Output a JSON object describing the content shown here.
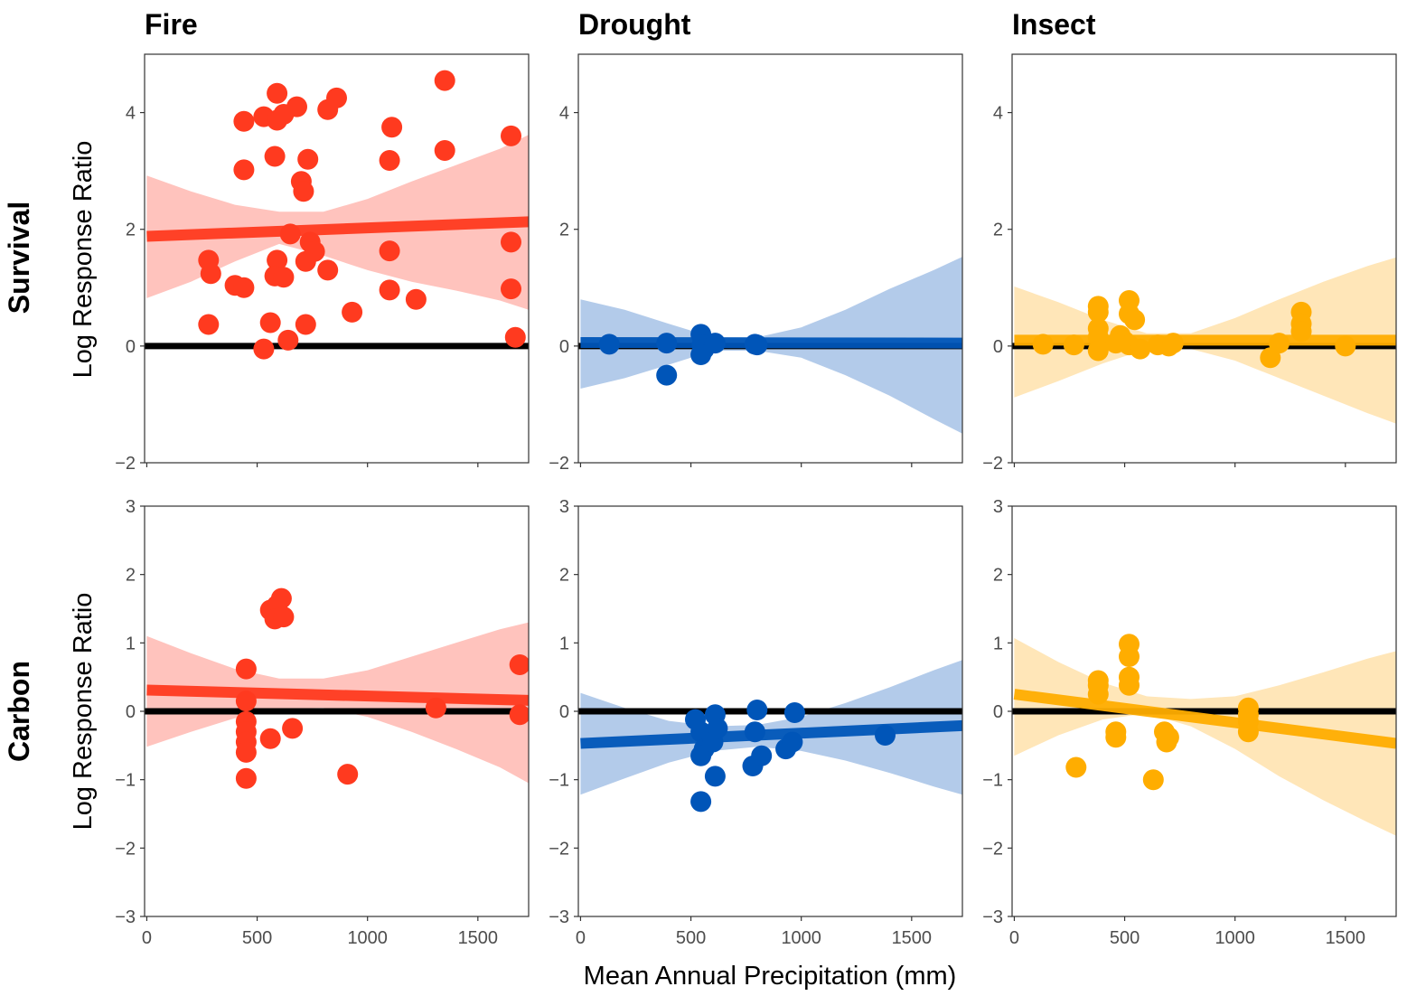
{
  "chart_data": {
    "type": "scatter",
    "layout": "facet-grid",
    "columns": [
      "Fire",
      "Drought",
      "Insect"
    ],
    "rows": [
      "Survival",
      "Carbon"
    ],
    "xlabel": "Mean Annual Precipitation (mm)",
    "ylabel": "Log Response Ratio",
    "xlim": [
      -10,
      1730
    ],
    "x_ticks": [
      0,
      500,
      1000,
      1500
    ],
    "x_tick_labels": [
      "0",
      "500",
      "1000",
      "1500"
    ],
    "row_scales": {
      "Survival": {
        "ylim": [
          -2,
          5
        ],
        "y_ticks": [
          -2,
          0,
          2,
          4
        ],
        "y_tick_labels": [
          "−2",
          "0",
          "2",
          "4"
        ]
      },
      "Carbon": {
        "ylim": [
          -3,
          3
        ],
        "y_ticks": [
          -3,
          -2,
          -1,
          0,
          1,
          2,
          3
        ],
        "y_tick_labels": [
          "−3",
          "−2",
          "−1",
          "0",
          "1",
          "2",
          "3"
        ]
      }
    },
    "grid": false,
    "reference_line": {
      "y": 0,
      "color": "#000000"
    },
    "colors": {
      "Fire": "#ff3a1f",
      "Drought": "#0055b8",
      "Insect": "#ffad00"
    },
    "band_colors": {
      "Fire": "#ffc3bd",
      "Drought": "#b3cbea",
      "Insect": "#ffe6b8"
    },
    "panels": [
      {
        "row": "Survival",
        "col": "Fire",
        "points": [
          [
            590,
            4.33
          ],
          [
            680,
            4.1
          ],
          [
            860,
            4.25
          ],
          [
            1350,
            4.55
          ],
          [
            440,
            3.85
          ],
          [
            530,
            3.93
          ],
          [
            590,
            3.87
          ],
          [
            620,
            3.97
          ],
          [
            820,
            4.05
          ],
          [
            1110,
            3.75
          ],
          [
            1650,
            3.6
          ],
          [
            580,
            3.25
          ],
          [
            730,
            3.2
          ],
          [
            440,
            3.02
          ],
          [
            1100,
            3.18
          ],
          [
            1350,
            3.35
          ],
          [
            700,
            2.82
          ],
          [
            710,
            2.65
          ],
          [
            650,
            1.92
          ],
          [
            740,
            1.78
          ],
          [
            1650,
            1.78
          ],
          [
            760,
            1.62
          ],
          [
            1100,
            1.63
          ],
          [
            280,
            1.47
          ],
          [
            590,
            1.47
          ],
          [
            720,
            1.45
          ],
          [
            290,
            1.24
          ],
          [
            580,
            1.2
          ],
          [
            620,
            1.18
          ],
          [
            820,
            1.3
          ],
          [
            400,
            1.04
          ],
          [
            440,
            1.0
          ],
          [
            1100,
            0.96
          ],
          [
            1650,
            0.98
          ],
          [
            1220,
            0.8
          ],
          [
            930,
            0.58
          ],
          [
            280,
            0.37
          ],
          [
            560,
            0.4
          ],
          [
            720,
            0.37
          ],
          [
            640,
            0.1
          ],
          [
            1670,
            0.15
          ],
          [
            530,
            -0.05
          ]
        ],
        "trend": {
          "x": [
            0,
            1730
          ],
          "y": [
            1.88,
            2.13
          ]
        },
        "band": {
          "x": [
            0,
            200,
            400,
            600,
            800,
            1000,
            1200,
            1400,
            1600,
            1730
          ],
          "lower": [
            0.82,
            1.1,
            1.45,
            1.75,
            1.55,
            1.3,
            1.1,
            0.95,
            0.78,
            0.62
          ],
          "upper": [
            2.92,
            2.65,
            2.42,
            2.3,
            2.3,
            2.52,
            2.82,
            3.1,
            3.38,
            3.62
          ]
        }
      },
      {
        "row": "Survival",
        "col": "Drought",
        "points": [
          [
            130,
            0.03
          ],
          [
            390,
            0.05
          ],
          [
            545,
            0.2
          ],
          [
            550,
            0.02
          ],
          [
            560,
            -0.05
          ],
          [
            545,
            -0.15
          ],
          [
            610,
            0.05
          ],
          [
            790,
            0.03
          ],
          [
            800,
            0.02
          ],
          [
            390,
            -0.5
          ]
        ],
        "trend": {
          "x": [
            0,
            1730
          ],
          "y": [
            0.06,
            0.05
          ]
        },
        "band": {
          "x": [
            0,
            200,
            400,
            600,
            800,
            1000,
            1200,
            1400,
            1600,
            1730
          ],
          "lower": [
            -0.73,
            -0.55,
            -0.32,
            -0.08,
            -0.08,
            -0.2,
            -0.5,
            -0.85,
            -1.25,
            -1.5
          ],
          "upper": [
            0.8,
            0.62,
            0.38,
            0.15,
            0.15,
            0.32,
            0.62,
            0.98,
            1.3,
            1.53
          ]
        }
      },
      {
        "row": "Survival",
        "col": "Insect",
        "points": [
          [
            130,
            0.03
          ],
          [
            270,
            0.02
          ],
          [
            380,
            0.68
          ],
          [
            380,
            0.58
          ],
          [
            380,
            0.3
          ],
          [
            380,
            0.15
          ],
          [
            380,
            -0.08
          ],
          [
            460,
            0.05
          ],
          [
            480,
            0.18
          ],
          [
            500,
            0.08
          ],
          [
            520,
            0.78
          ],
          [
            520,
            0.55
          ],
          [
            545,
            0.45
          ],
          [
            520,
            0.02
          ],
          [
            570,
            -0.05
          ],
          [
            650,
            0.02
          ],
          [
            700,
            0.0
          ],
          [
            720,
            0.05
          ],
          [
            1160,
            -0.2
          ],
          [
            1200,
            0.05
          ],
          [
            1300,
            0.58
          ],
          [
            1300,
            0.38
          ],
          [
            1300,
            0.25
          ],
          [
            1500,
            0.0
          ]
        ],
        "trend": {
          "x": [
            0,
            1730
          ],
          "y": [
            0.1,
            0.1
          ]
        },
        "band": {
          "x": [
            0,
            200,
            400,
            600,
            800,
            1000,
            1200,
            1400,
            1600,
            1730
          ],
          "lower": [
            -0.88,
            -0.6,
            -0.3,
            -0.05,
            -0.05,
            -0.25,
            -0.55,
            -0.85,
            -1.15,
            -1.33
          ],
          "upper": [
            1.02,
            0.75,
            0.45,
            0.22,
            0.22,
            0.48,
            0.8,
            1.1,
            1.37,
            1.52
          ]
        }
      },
      {
        "row": "Carbon",
        "col": "Fire",
        "points": [
          [
            560,
            1.48
          ],
          [
            610,
            1.65
          ],
          [
            590,
            1.55
          ],
          [
            580,
            1.35
          ],
          [
            620,
            1.38
          ],
          [
            450,
            0.62
          ],
          [
            450,
            0.15
          ],
          [
            450,
            -0.15
          ],
          [
            450,
            -0.3
          ],
          [
            450,
            -0.45
          ],
          [
            450,
            -0.6
          ],
          [
            560,
            -0.4
          ],
          [
            660,
            -0.25
          ],
          [
            450,
            -0.98
          ],
          [
            910,
            -0.92
          ],
          [
            1310,
            0.05
          ],
          [
            1690,
            0.68
          ],
          [
            1690,
            -0.05
          ]
        ],
        "trend": {
          "x": [
            0,
            1730
          ],
          "y": [
            0.31,
            0.16
          ]
        },
        "band": {
          "x": [
            0,
            200,
            400,
            600,
            800,
            1000,
            1200,
            1400,
            1600,
            1730
          ],
          "lower": [
            -0.52,
            -0.3,
            -0.1,
            0.04,
            0.05,
            -0.08,
            -0.3,
            -0.55,
            -0.82,
            -1.05
          ],
          "upper": [
            1.1,
            0.85,
            0.62,
            0.48,
            0.48,
            0.6,
            0.8,
            1.0,
            1.2,
            1.3
          ]
        }
      },
      {
        "row": "Carbon",
        "col": "Drought",
        "points": [
          [
            520,
            -0.12
          ],
          [
            545,
            -0.3
          ],
          [
            560,
            -0.55
          ],
          [
            545,
            -0.65
          ],
          [
            600,
            -0.45
          ],
          [
            610,
            -0.05
          ],
          [
            620,
            -0.25
          ],
          [
            610,
            -0.95
          ],
          [
            545,
            -1.32
          ],
          [
            780,
            -0.8
          ],
          [
            790,
            -0.3
          ],
          [
            800,
            0.02
          ],
          [
            820,
            -0.65
          ],
          [
            930,
            -0.55
          ],
          [
            960,
            -0.45
          ],
          [
            970,
            -0.02
          ],
          [
            1380,
            -0.35
          ]
        ],
        "trend": {
          "x": [
            0,
            1730
          ],
          "y": [
            -0.47,
            -0.21
          ]
        },
        "band": {
          "x": [
            0,
            200,
            400,
            600,
            800,
            1000,
            1200,
            1400,
            1600,
            1730
          ],
          "lower": [
            -1.22,
            -0.98,
            -0.75,
            -0.58,
            -0.52,
            -0.58,
            -0.72,
            -0.9,
            -1.1,
            -1.22
          ],
          "upper": [
            0.27,
            0.05,
            -0.14,
            -0.22,
            -0.2,
            -0.08,
            0.12,
            0.35,
            0.6,
            0.75
          ]
        }
      },
      {
        "row": "Carbon",
        "col": "Insect",
        "points": [
          [
            280,
            -0.82
          ],
          [
            380,
            0.45
          ],
          [
            380,
            0.38
          ],
          [
            380,
            0.25
          ],
          [
            460,
            -0.3
          ],
          [
            460,
            -0.38
          ],
          [
            520,
            0.98
          ],
          [
            520,
            0.8
          ],
          [
            520,
            0.5
          ],
          [
            520,
            0.38
          ],
          [
            630,
            -1.0
          ],
          [
            680,
            -0.3
          ],
          [
            690,
            -0.45
          ],
          [
            700,
            -0.38
          ],
          [
            1060,
            0.05
          ],
          [
            1060,
            -0.05
          ],
          [
            1060,
            -0.15
          ],
          [
            1060,
            -0.3
          ]
        ],
        "trend": {
          "x": [
            0,
            1730
          ],
          "y": [
            0.25,
            -0.47
          ]
        },
        "band": {
          "x": [
            0,
            200,
            400,
            600,
            800,
            1000,
            1200,
            1400,
            1600,
            1730
          ],
          "lower": [
            -0.65,
            -0.35,
            -0.12,
            -0.03,
            -0.22,
            -0.55,
            -0.95,
            -1.3,
            -1.62,
            -1.82
          ],
          "upper": [
            1.07,
            0.72,
            0.42,
            0.22,
            0.18,
            0.22,
            0.38,
            0.57,
            0.77,
            0.88
          ]
        }
      }
    ]
  }
}
